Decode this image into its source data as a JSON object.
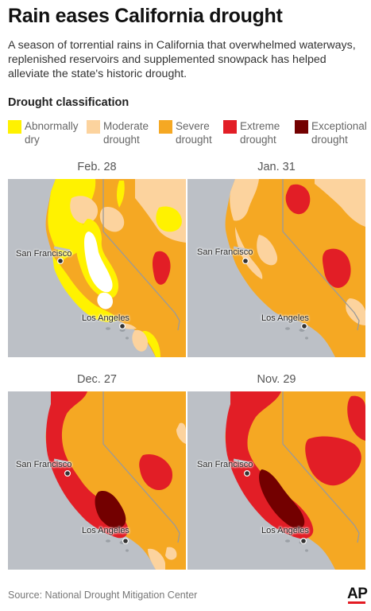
{
  "title": "Rain eases California drought",
  "subtitle": "A season of torrential rains in California that overwhelmed waterways, replenished reservoirs and supplemented snowpack has helped alleviate the state's historic drought.",
  "legend": {
    "title": "Drought classification",
    "items": [
      {
        "label": "Abnormally\ndry",
        "color": "#fff200"
      },
      {
        "label": "Moderate\ndrought",
        "color": "#fcd39e"
      },
      {
        "label": "Severe\ndrought",
        "color": "#f5a823"
      },
      {
        "label": "Extreme\ndrought",
        "color": "#e21e26"
      },
      {
        "label": "Exceptional\ndrought",
        "color": "#730000"
      }
    ]
  },
  "maps": [
    {
      "date": "Feb. 28"
    },
    {
      "date": "Jan. 31"
    },
    {
      "date": "Dec. 27"
    },
    {
      "date": "Nov. 29"
    }
  ],
  "cities": {
    "sf": "San Francisco",
    "la": "Los Angeles"
  },
  "source": "Source: National Drought Mitigation Center",
  "logo": "AP"
}
